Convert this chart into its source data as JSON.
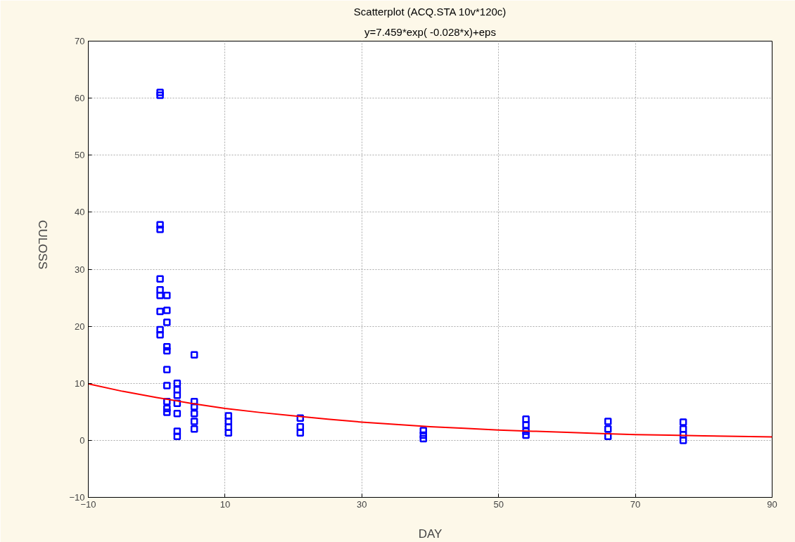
{
  "chart_data": {
    "type": "scatter",
    "title": "Scatterplot (ACQ.STA 10v*120c)",
    "subtitle": "y=7.459*exp( -0.028*x)+eps",
    "xlabel": "DAY",
    "ylabel": "CULOSS",
    "xlim": [
      -10,
      90
    ],
    "xticks": [
      -10,
      10,
      30,
      50,
      70,
      90
    ],
    "ylim": [
      -10,
      70
    ],
    "yticks": [
      -10,
      0,
      10,
      20,
      30,
      40,
      50,
      60,
      70
    ],
    "grid": true,
    "series": [
      {
        "color": "#0000ff",
        "marker": "square",
        "x": [
          0.5,
          0.5,
          0.5,
          0.5,
          0.5,
          0.5,
          0.5,
          0.5,
          0.5,
          0.5,
          1.5,
          1.5,
          1.5,
          1.5,
          1.5,
          1.5,
          1.5,
          1.5,
          1.5,
          1.5,
          3,
          3,
          3,
          3,
          3,
          3,
          3,
          5.5,
          5.5,
          5.5,
          5.5,
          5.5,
          5.5,
          10.5,
          10.5,
          10.5,
          10.5,
          21,
          21,
          21,
          39,
          39,
          39,
          54,
          54,
          54,
          54,
          66,
          66,
          66,
          77,
          77,
          77,
          77
        ],
        "values": [
          61,
          60.5,
          37.8,
          37,
          28.3,
          26.4,
          25.4,
          22.6,
          19.4,
          18.5,
          25.4,
          22.8,
          20.7,
          16.4,
          15.7,
          12.4,
          9.6,
          6.8,
          5.6,
          4.9,
          10,
          8.9,
          7.9,
          6.5,
          4.7,
          1.6,
          0.7,
          15,
          6.8,
          5.9,
          4.7,
          3.3,
          2,
          4.3,
          3.3,
          2.3,
          1.3,
          3.9,
          2.4,
          1.3,
          1.7,
          0.9,
          0.3,
          3.7,
          2.7,
          1.6,
          0.9,
          3.3,
          2,
          0.7,
          3.2,
          2,
          1,
          0
        ]
      },
      {
        "type": "line",
        "color": "#ff0000",
        "line_style": "solid",
        "x": [
          -10,
          -5,
          0,
          5,
          10,
          15,
          20,
          25,
          30,
          35,
          40,
          45,
          50,
          55,
          60,
          65,
          70,
          75,
          80,
          85,
          90
        ],
        "values": [
          9.9,
          8.6,
          7.5,
          6.5,
          5.6,
          4.9,
          4.3,
          3.7,
          3.2,
          2.8,
          2.4,
          2.1,
          1.8,
          1.6,
          1.4,
          1.2,
          1,
          0.9,
          0.8,
          0.7,
          0.6
        ]
      }
    ]
  }
}
